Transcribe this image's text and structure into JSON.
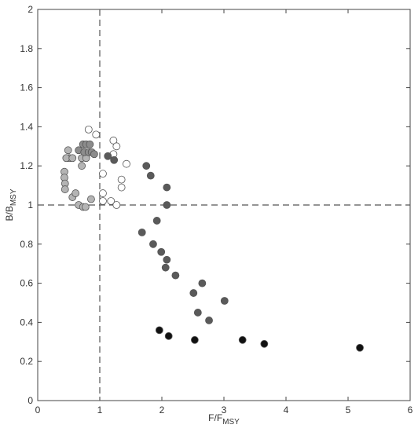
{
  "chart_data": {
    "type": "scatter",
    "xlabel": "F/F",
    "xlabel_sub": "MSY",
    "ylabel": "B/B",
    "ylabel_sub": "MSY",
    "xlim": [
      0,
      6
    ],
    "xticks": [
      0,
      1,
      2,
      3,
      4,
      5,
      6
    ],
    "ylim": [
      0,
      2
    ],
    "yticks": [
      0,
      0.2,
      0.4,
      0.6,
      0.8,
      1,
      1.2,
      1.4,
      1.6,
      1.8,
      2
    ],
    "reference_x": 1,
    "reference_y": 1,
    "edgecolor": "#555555",
    "series": [
      {
        "color": "#ffffff",
        "x": [
          0.82,
          0.94,
          1.22,
          1.27,
          1.43,
          1.05,
          1.35,
          1.35,
          1.05,
          1.05,
          1.18,
          1.27,
          1.22
        ],
        "values": [
          1.386,
          1.36,
          1.33,
          1.3,
          1.21,
          1.16,
          1.13,
          1.09,
          1.06,
          1.02,
          1.02,
          1.0,
          1.26
        ]
      },
      {
        "color": "#b4b4b4",
        "x": [
          0.43,
          0.43,
          0.44,
          0.44,
          0.49,
          0.51,
          0.46,
          0.56,
          0.56,
          0.61,
          0.66,
          0.73,
          0.77,
          0.86,
          0.71,
          0.71,
          0.78
        ],
        "values": [
          1.17,
          1.14,
          1.11,
          1.08,
          1.28,
          1.24,
          1.24,
          1.24,
          1.04,
          1.06,
          1.0,
          0.99,
          0.99,
          1.03,
          1.24,
          1.2,
          1.24
        ]
      },
      {
        "color": "#8c8c8c",
        "x": [
          0.66,
          0.73,
          0.78,
          0.84,
          0.75,
          0.82,
          0.87,
          0.91
        ],
        "values": [
          1.28,
          1.31,
          1.31,
          1.31,
          1.27,
          1.27,
          1.27,
          1.26
        ]
      },
      {
        "color": "#5a5a5a",
        "x": [
          1.13,
          1.23,
          1.75,
          1.82,
          2.08,
          2.08,
          1.92,
          1.68,
          1.86,
          1.99,
          2.08,
          2.06,
          2.22,
          2.65,
          2.51,
          3.01,
          2.58,
          2.76
        ],
        "values": [
          1.25,
          1.23,
          1.2,
          1.15,
          1.09,
          1.0,
          0.92,
          0.86,
          0.8,
          0.76,
          0.72,
          0.68,
          0.64,
          0.6,
          0.55,
          0.51,
          0.45,
          0.41
        ]
      },
      {
        "color": "#111111",
        "x": [
          1.96,
          2.11,
          2.53,
          3.3,
          3.65,
          5.19
        ],
        "values": [
          0.36,
          0.33,
          0.31,
          0.31,
          0.29,
          0.27
        ]
      }
    ]
  }
}
